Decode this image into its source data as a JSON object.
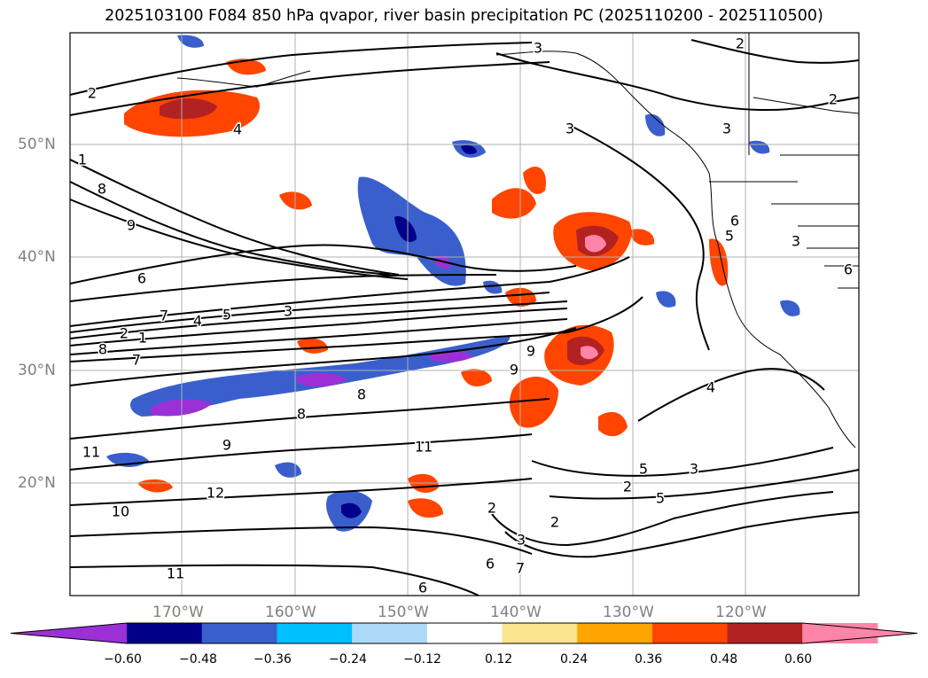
{
  "title": "2025103100 F084 850 hPa qvapor, river basin precipitation PC (2025110200 - 2025110500)",
  "lat_labels": [
    "50°N",
    "40°N",
    "30°N",
    "20°N"
  ],
  "lon_labels": [
    "170°W",
    "160°W",
    "150°W",
    "140°W",
    "130°W",
    "120°W"
  ],
  "contour_labels": [
    "3",
    "2",
    "2",
    "3",
    "4",
    "3",
    "2",
    "1",
    "8",
    "9",
    "6",
    "7",
    "4",
    "5",
    "3",
    "2",
    "1",
    "8",
    "7",
    "9",
    "9",
    "8",
    "8",
    "9",
    "11",
    "11",
    "12",
    "10",
    "11",
    "6",
    "6",
    "7",
    "2",
    "3",
    "2",
    "4",
    "5",
    "3",
    "2",
    "5",
    "6",
    "5",
    "3",
    "6"
  ],
  "colorbar": {
    "ticks": [
      "−0.60",
      "−0.48",
      "−0.36",
      "−0.24",
      "−0.12",
      "0.12",
      "0.24",
      "0.36",
      "0.48",
      "0.60"
    ],
    "colors": [
      "#9b30d6",
      "#00008b",
      "#3a5fcd",
      "#00bfff",
      "#add8f6",
      "#ffffff",
      "#fbe58f",
      "#ffa500",
      "#ff4500",
      "#b22222",
      "#ff85a8",
      "#ff85a8"
    ]
  }
}
